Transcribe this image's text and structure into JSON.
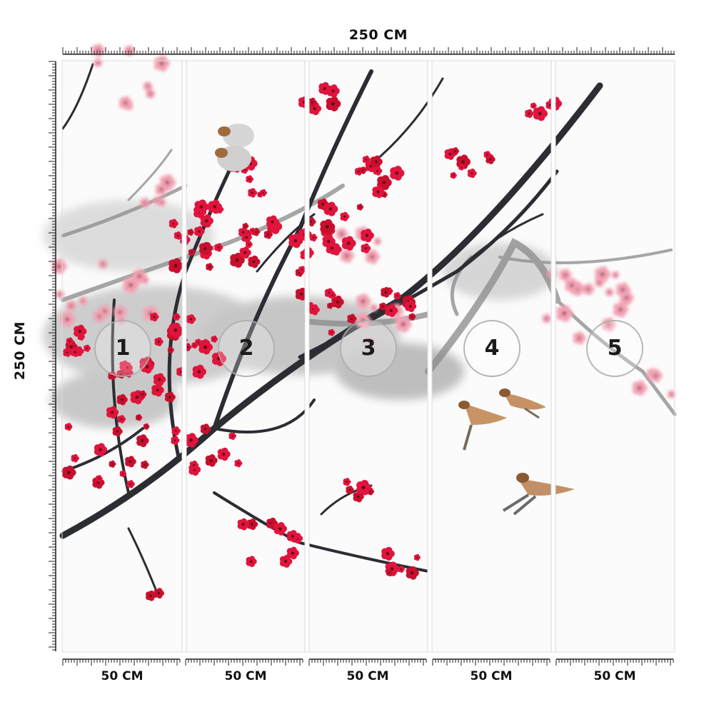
{
  "dimensions": {
    "total_width_label": "250 CM",
    "total_height_label": "250 CM"
  },
  "panels": [
    {
      "number": "1",
      "width_label": "50 CM"
    },
    {
      "number": "2",
      "width_label": "50 CM"
    },
    {
      "number": "3",
      "width_label": "50 CM"
    },
    {
      "number": "4",
      "width_label": "50 CM"
    },
    {
      "number": "5",
      "width_label": "50 CM"
    }
  ],
  "colors": {
    "blossom_red": "#e0143c",
    "blossom_pink": "#f2a2b4",
    "branch_dark": "#2b2d33",
    "ink_gray": "#9a9a9a",
    "sparrow_brown": "#b07a4a",
    "panel_divider": "#d8d8d8"
  },
  "artwork": {
    "icons": [
      "plum-blossom-branch",
      "sparrow-bird"
    ]
  }
}
